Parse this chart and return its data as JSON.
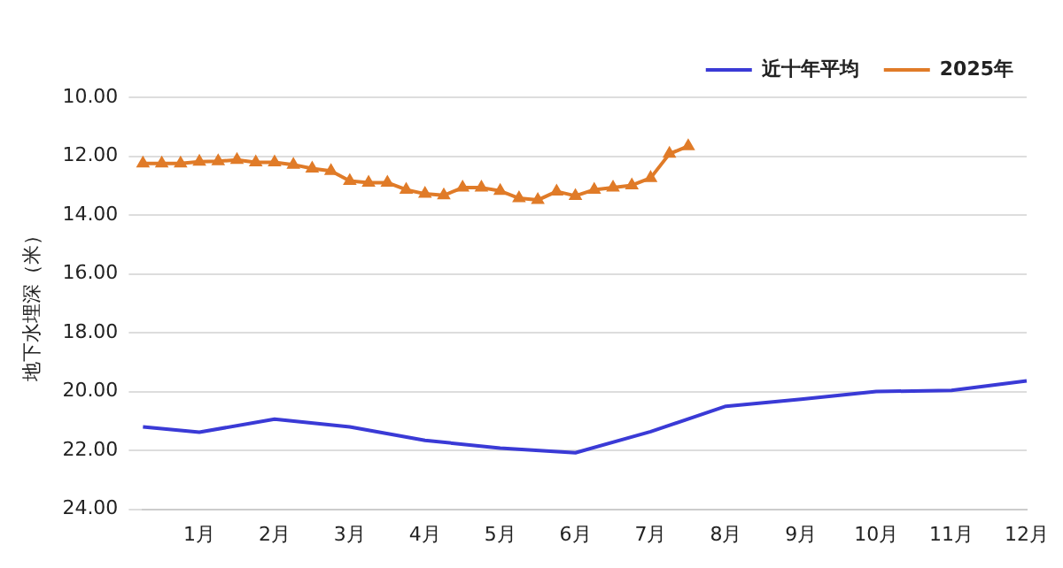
{
  "chart_data": {
    "type": "line",
    "ylabel": "地下水埋深（米）",
    "categories": [
      null,
      null,
      null,
      "1月",
      null,
      null,
      null,
      "2月",
      null,
      null,
      null,
      "3月",
      null,
      null,
      null,
      "4月",
      null,
      null,
      null,
      "5月",
      null,
      null,
      null,
      "6月",
      null,
      null,
      null,
      "7月",
      null,
      null,
      null,
      "8月",
      null,
      null,
      null,
      "9月",
      null,
      null,
      null,
      "10月",
      null,
      null,
      null,
      "11月",
      null,
      null,
      null,
      "12月"
    ],
    "series": [
      {
        "name": "近十年平均",
        "color": "#3a3ad6",
        "marker": "none",
        "values": [
          21.2,
          null,
          null,
          21.38,
          null,
          null,
          null,
          20.94,
          null,
          null,
          null,
          21.2,
          null,
          null,
          null,
          21.66,
          null,
          null,
          null,
          21.92,
          null,
          null,
          null,
          22.08,
          null,
          null,
          null,
          21.36,
          null,
          null,
          null,
          20.5,
          null,
          null,
          null,
          20.26,
          null,
          null,
          null,
          20.0,
          null,
          null,
          null,
          19.96,
          null,
          null,
          null,
          19.64
        ]
      },
      {
        "name": "2025年",
        "color": "#e07b28",
        "marker": "triangle",
        "values": [
          12.25,
          12.25,
          12.25,
          12.19,
          12.17,
          12.13,
          12.21,
          12.21,
          12.29,
          12.42,
          12.5,
          12.84,
          12.9,
          12.9,
          13.14,
          13.28,
          13.33,
          13.07,
          13.07,
          13.18,
          13.43,
          13.49,
          13.2,
          13.35,
          13.14,
          13.07,
          12.99,
          12.74,
          11.92,
          11.66,
          null,
          null,
          null,
          null,
          null,
          null,
          null,
          null,
          null,
          null,
          null,
          null,
          null,
          null,
          null,
          null,
          null,
          null
        ]
      }
    ],
    "ylim": [
      24,
      10
    ],
    "yticks": [
      {
        "value": 10,
        "label": "10.00"
      },
      {
        "value": 12,
        "label": "12.00"
      },
      {
        "value": 14,
        "label": "14.00"
      },
      {
        "value": 16,
        "label": "16.00"
      },
      {
        "value": 18,
        "label": "18.00"
      },
      {
        "value": 20,
        "label": "20.00"
      },
      {
        "value": 22,
        "label": "22.00"
      },
      {
        "value": 24,
        "label": "24.00"
      }
    ],
    "grid": "y",
    "legend": "top right"
  }
}
